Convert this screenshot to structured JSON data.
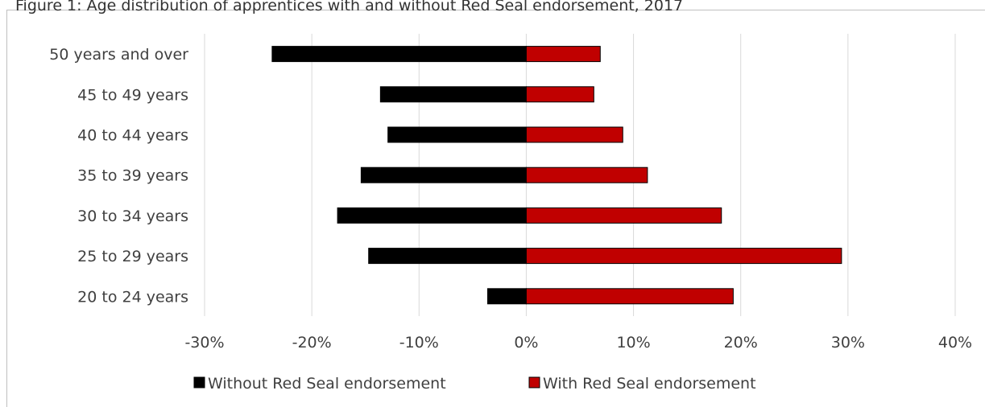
{
  "title": "Figure 1: Age distribution of apprentices with and without Red Seal endorsement, 2017",
  "chart_data": {
    "type": "bar",
    "orientation": "horizontal",
    "diverging": true,
    "categories": [
      "50 years and over",
      "45 to 49 years",
      "40 to 44 years",
      "35 to 39 years",
      "30 to 34 years",
      "25 to 29 years",
      "20 to 24 years"
    ],
    "series": [
      {
        "name": "Without Red Seal endorsement",
        "color": "#000000",
        "values": [
          -23.7,
          -13.6,
          -12.9,
          -15.4,
          -17.6,
          -14.7,
          -3.6
        ]
      },
      {
        "name": "With Red Seal endorsement",
        "color": "#c00000",
        "values": [
          6.9,
          6.3,
          9.0,
          11.3,
          18.2,
          29.4,
          19.3
        ]
      }
    ],
    "xlim": [
      -30,
      40
    ],
    "xticks": [
      "-30%",
      "-20%",
      "-10%",
      "0%",
      "10%",
      "20%",
      "30%",
      "40%"
    ],
    "grid": true,
    "legend_position": "bottom"
  }
}
